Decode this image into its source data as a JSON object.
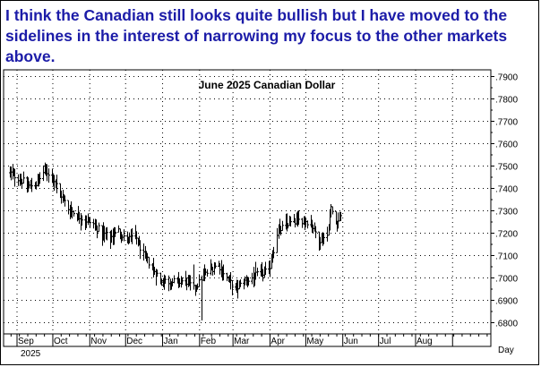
{
  "commentary": "I think the Canadian still looks quite bullish but I have moved to the sidelines in the interest of narrowing my focus to the other markets above.",
  "chart_data": {
    "type": "bar",
    "style": "ohlc",
    "title": "June 2025 Canadian Dollar",
    "xlabel": "Day",
    "ylabel": "",
    "year_label": "2025",
    "ylim": [
      0.675,
      0.793
    ],
    "y_ticks": [
      ".6800",
      ".6900",
      ".7000",
      ".7100",
      ".7200",
      ".7300",
      ".7400",
      ".7500",
      ".7600",
      ".7700",
      ".7800",
      ".7900"
    ],
    "y_tick_values": [
      0.68,
      0.69,
      0.7,
      0.71,
      0.72,
      0.73,
      0.74,
      0.75,
      0.76,
      0.77,
      0.78,
      0.79
    ],
    "x_months": [
      "Sep",
      "Oct",
      "Nov",
      "Dec",
      "Jan",
      "Feb",
      "Mar",
      "Apr",
      "May",
      "Jun",
      "Jul",
      "Aug"
    ],
    "grid": true,
    "colors": {
      "commentary": "#1c1ca8",
      "bars": "#000000",
      "grid": "#000000"
    },
    "anchors": [
      [
        "2024-08-26",
        0.747
      ],
      [
        "2024-09-03",
        0.7445
      ],
      [
        "2024-09-10",
        0.741
      ],
      [
        "2024-09-17",
        0.742
      ],
      [
        "2024-09-24",
        0.748
      ],
      [
        "2024-09-30",
        0.746
      ],
      [
        "2024-10-07",
        0.738
      ],
      [
        "2024-10-14",
        0.731
      ],
      [
        "2024-10-21",
        0.728
      ],
      [
        "2024-10-28",
        0.726
      ],
      [
        "2024-11-04",
        0.724
      ],
      [
        "2024-11-11",
        0.72
      ],
      [
        "2024-11-18",
        0.718
      ],
      [
        "2024-11-25",
        0.721
      ],
      [
        "2024-12-02",
        0.717
      ],
      [
        "2024-12-09",
        0.719
      ],
      [
        "2024-12-16",
        0.71
      ],
      [
        "2024-12-23",
        0.705
      ],
      [
        "2024-12-30",
        0.699
      ],
      [
        "2025-01-06",
        0.6985
      ],
      [
        "2025-01-13",
        0.698
      ],
      [
        "2025-01-20",
        0.699
      ],
      [
        "2025-01-27",
        0.695
      ],
      [
        "2025-02-03",
        0.7
      ],
      [
        "2025-02-10",
        0.704
      ],
      [
        "2025-02-17",
        0.706
      ],
      [
        "2025-02-24",
        0.7
      ],
      [
        "2025-03-03",
        0.695
      ],
      [
        "2025-03-10",
        0.698
      ],
      [
        "2025-03-17",
        0.7
      ],
      [
        "2025-03-24",
        0.702
      ],
      [
        "2025-03-31",
        0.703
      ],
      [
        "2025-04-07",
        0.72
      ],
      [
        "2025-04-14",
        0.724
      ],
      [
        "2025-04-21",
        0.725
      ],
      [
        "2025-04-28",
        0.726
      ],
      [
        "2025-05-05",
        0.725
      ],
      [
        "2025-05-12",
        0.717
      ],
      [
        "2025-05-19",
        0.719
      ],
      [
        "2025-05-22",
        0.731
      ],
      [
        "2025-05-27",
        0.724
      ],
      [
        "2025-05-30",
        0.729
      ]
    ],
    "spikes": [
      {
        "date": "2025-02-03",
        "low": 0.681
      },
      {
        "date": "2025-01-27",
        "high": 0.706
      },
      {
        "date": "2025-05-22",
        "high": 0.733
      }
    ]
  }
}
